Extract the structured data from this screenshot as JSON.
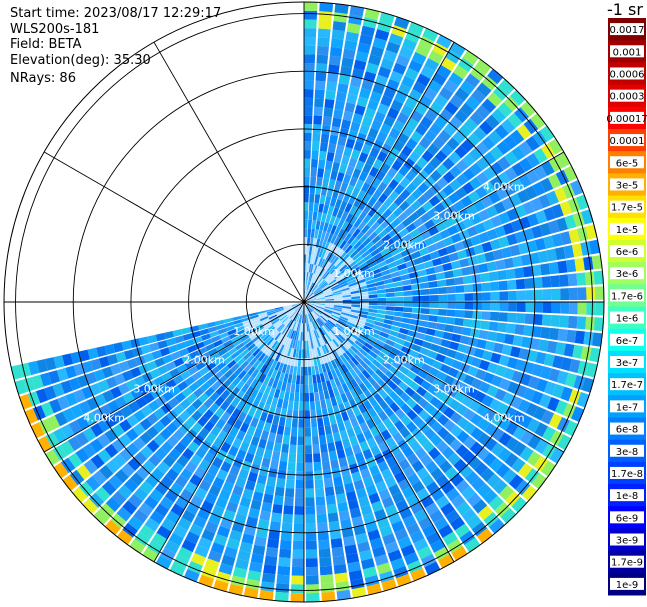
{
  "header": {
    "start_time": "Start time: 2023/08/17 12:29:17",
    "instrument": "WLS200s-181",
    "field": "Field: BETA",
    "elevation": "Elevation(deg): 35.30",
    "nrays": "NRays: 86"
  },
  "chart_data": {
    "type": "heatmap",
    "projection": "polar-ppi",
    "field": "BETA",
    "unit_label": "-1 sr",
    "nrays": 86,
    "sector_start_deg": 0,
    "sector_end_deg": 258,
    "max_range_km": 5.2,
    "range_rings_km": [
      1,
      2,
      3,
      4
    ],
    "range_labels": [
      "1.00km",
      "2.00km",
      "3.00km",
      "4.00km"
    ],
    "colorbar": {
      "ticks": [
        "0.0017",
        "0.001",
        "0.0006",
        "0.0003",
        "0.00017",
        "0.0001",
        "6e-5",
        "3e-5",
        "1.7e-5",
        "1e-5",
        "6e-6",
        "3e-6",
        "1.7e-6",
        "1e-6",
        "6e-7",
        "3e-7",
        "1.7e-7",
        "1e-7",
        "6e-8",
        "3e-8",
        "1.7e-8",
        "1e-8",
        "6e-9",
        "3e-9",
        "1.7e-9",
        "1e-9"
      ],
      "colors": [
        "#800000",
        "#a00000",
        "#c00000",
        "#e00000",
        "#ff0000",
        "#ff4000",
        "#ff8000",
        "#ffb000",
        "#ffe000",
        "#ffff00",
        "#d0ff30",
        "#a0ff60",
        "#70ff90",
        "#40ffc0",
        "#10ffef",
        "#00e0ff",
        "#00c0ff",
        "#00a0ff",
        "#0080ff",
        "#0060ff",
        "#0040ff",
        "#0020ff",
        "#0000ff",
        "#0000d0",
        "#0000a0",
        "#000080"
      ]
    }
  }
}
